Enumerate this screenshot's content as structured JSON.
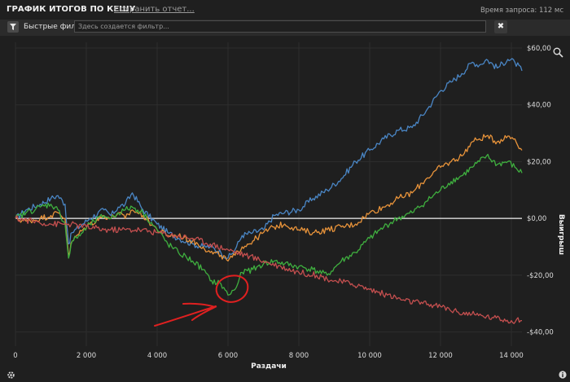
{
  "header": {
    "title": "ГРАФИК ИТОГОВ ПО КЕШУ",
    "save_link": "Сохранить отчет...",
    "query_time": "Время запроса: 112 мс"
  },
  "filter": {
    "label": "Быстрые фильт",
    "placeholder": "Здесь создается фильтр...",
    "clear": "✖"
  },
  "icons": {
    "filter": "funnel-icon",
    "zoom": "magnifier-icon",
    "settings": "gear-icon",
    "info": "info-icon"
  },
  "chart_data": {
    "type": "line",
    "xlabel": "Раздачи",
    "ylabel": "Выигрыш",
    "xlim": [
      0,
      14300
    ],
    "ylim": [
      -45,
      62
    ],
    "x_ticks": [
      0,
      2000,
      4000,
      6000,
      8000,
      10000,
      12000,
      14000
    ],
    "x_tick_labels": [
      "0",
      "2 000",
      "4 000",
      "6 000",
      "8 000",
      "10 000",
      "12 000",
      "14 000"
    ],
    "y_ticks": [
      -40,
      -20,
      0,
      20,
      40,
      60
    ],
    "y_tick_labels": [
      "-$40,00",
      "-$20,00",
      "$0,00",
      "$20,00",
      "$40,00",
      "$60,00"
    ],
    "zero_line": true,
    "series": [
      {
        "color": "#4a86c5",
        "x": [
          0,
          300,
          700,
          1000,
          1200,
          1400,
          1500,
          1600,
          1900,
          2100,
          2500,
          2700,
          2900,
          3100,
          3300,
          3600,
          4000,
          4300,
          4600,
          5000,
          5300,
          5500,
          5800,
          6000,
          6200,
          6400,
          6700,
          7000,
          7300,
          7600,
          8000,
          8400,
          8800,
          9200,
          9600,
          10000,
          10400,
          10800,
          11200,
          11600,
          12000,
          12300,
          12600,
          12900,
          13100,
          13300,
          13600,
          13900,
          14100,
          14300
        ],
        "y": [
          0,
          3,
          5,
          7,
          8,
          5,
          -9,
          -5,
          -2,
          0,
          3,
          1,
          4,
          5,
          9,
          3,
          -2,
          -5,
          -7,
          -9,
          -10,
          -10,
          -12,
          -14,
          -11,
          -6,
          -5,
          -4,
          1,
          2,
          3,
          7,
          10,
          14,
          20,
          24,
          28,
          31,
          32,
          38,
          45,
          48,
          51,
          55,
          54,
          56,
          53,
          56,
          55,
          52
        ]
      },
      {
        "color": "#e8933a",
        "x": [
          0,
          300,
          700,
          1000,
          1200,
          1400,
          1500,
          1600,
          1900,
          2100,
          2500,
          2700,
          2900,
          3100,
          3300,
          3600,
          4000,
          4300,
          4600,
          5000,
          5300,
          5500,
          5800,
          6000,
          6200,
          6400,
          6700,
          7000,
          7300,
          7600,
          8000,
          8400,
          8800,
          9200,
          9600,
          10000,
          10400,
          10800,
          11200,
          11600,
          12000,
          12300,
          12600,
          12900,
          13100,
          13300,
          13600,
          13900,
          14100,
          14300
        ],
        "y": [
          0,
          -1,
          0,
          1,
          2,
          0,
          -13,
          -8,
          -4,
          -2,
          1,
          0,
          2,
          0,
          3,
          1,
          -4,
          -6,
          -6,
          -8,
          -10,
          -12,
          -13,
          -15,
          -13,
          -10,
          -8,
          -5,
          -3,
          -2,
          -4,
          -5,
          -4,
          -3,
          -2,
          2,
          4,
          7,
          9,
          14,
          18,
          20,
          22,
          27,
          28,
          29,
          27,
          29,
          28,
          24
        ]
      },
      {
        "color": "#3faf3f",
        "x": [
          0,
          300,
          700,
          1000,
          1200,
          1400,
          1500,
          1600,
          1900,
          2100,
          2500,
          2700,
          2900,
          3100,
          3300,
          3600,
          4000,
          4300,
          4600,
          5000,
          5300,
          5500,
          5800,
          6000,
          6200,
          6400,
          6700,
          7000,
          7300,
          7600,
          8000,
          8400,
          8800,
          9200,
          9600,
          10000,
          10400,
          10800,
          11200,
          11600,
          12000,
          12300,
          12600,
          12900,
          13100,
          13300,
          13600,
          13900,
          14100,
          14300
        ],
        "y": [
          0,
          2,
          4,
          5,
          3,
          -2,
          -14,
          -8,
          -5,
          -2,
          1,
          0,
          2,
          3,
          4,
          2,
          -4,
          -9,
          -12,
          -15,
          -18,
          -22,
          -23,
          -27,
          -25,
          -19,
          -18,
          -16,
          -15,
          -16,
          -17,
          -18,
          -20,
          -15,
          -12,
          -7,
          -3,
          0,
          2,
          6,
          10,
          13,
          15,
          18,
          20,
          22,
          19,
          20,
          18,
          16
        ]
      },
      {
        "color": "#c44f4f",
        "x": [
          0,
          500,
          1000,
          1500,
          2000,
          2500,
          3000,
          3500,
          4000,
          4500,
          5000,
          5500,
          6000,
          6500,
          7000,
          7500,
          8000,
          8500,
          9000,
          9500,
          10000,
          10500,
          11000,
          11500,
          12000,
          12500,
          13000,
          13500,
          14000,
          14300
        ],
        "y": [
          0,
          -1,
          -2,
          -2,
          -3,
          -4,
          -4,
          -4,
          -5,
          -6,
          -7,
          -9,
          -11,
          -13,
          -15,
          -17,
          -19,
          -20,
          -22,
          -23,
          -25,
          -27,
          -29,
          -30,
          -31,
          -33,
          -34,
          -35,
          -36,
          -36
        ]
      }
    ]
  }
}
